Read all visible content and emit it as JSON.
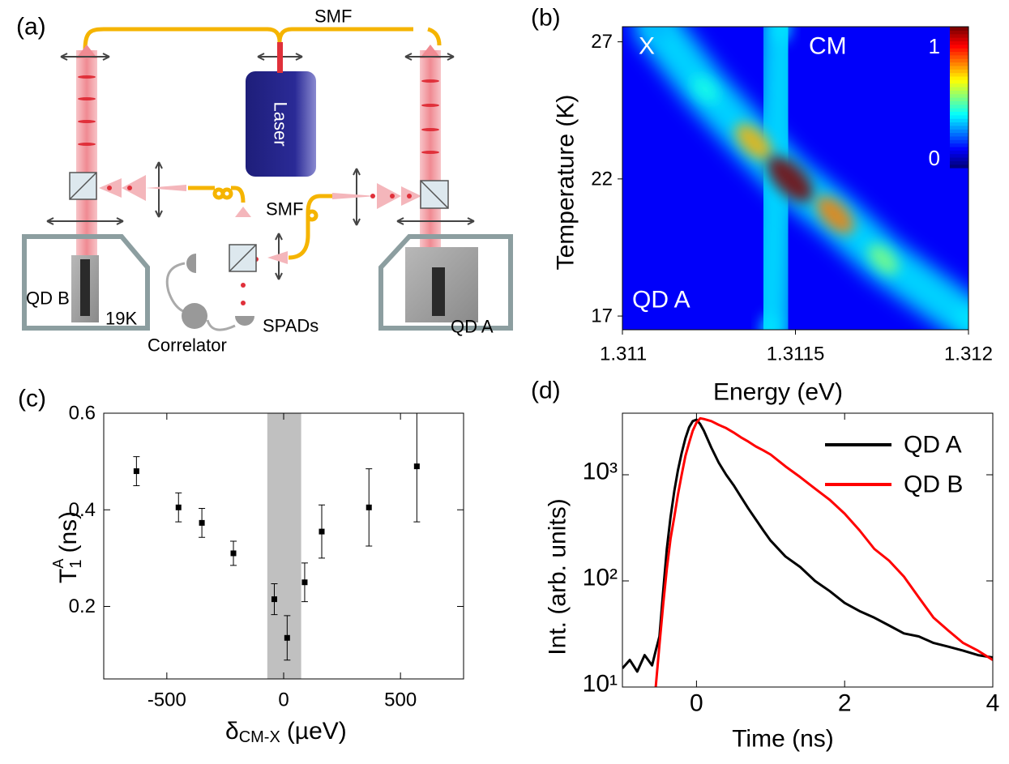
{
  "diagram": {
    "panel_label": "(a)",
    "fiber_top": "SMF",
    "laser": "Laser",
    "fiber_middle": "SMF",
    "sample_left": "QD B",
    "temperature": "19K",
    "correlator": "Correlator",
    "detectors": "SPADs",
    "sample_right": "QD A"
  },
  "chart_data": [
    {
      "type": "heatmap",
      "panel_label": "(b)",
      "xlabel": "Energy (eV)",
      "ylabel": "Temperature (K)",
      "xlim": [
        1.311,
        1.312
      ],
      "xticks": [
        1.311,
        1.3115,
        1.312
      ],
      "ylim": [
        16.5,
        27.55
      ],
      "yticks": [
        17,
        22,
        27
      ],
      "annotations": [
        "X",
        "CM",
        "QD A"
      ],
      "colorbar": {
        "ticks": [
          0,
          1
        ]
      },
      "ridges": [
        {
          "energy": [
            1.311461,
            1.311426
          ],
          "temperature": [
            27.55,
            16.5
          ],
          "intensity": [
            0.35,
            0.35
          ]
        },
        {
          "energy": [
            1.311098,
            1.311239,
            1.311379,
            1.311485,
            1.311614,
            1.311754,
            1.312
          ],
          "temperature": [
            27.55,
            25.27,
            23.35,
            21.99,
            20.69,
            19.07,
            16.85
          ],
          "intensity": [
            0.3,
            0.4,
            0.7,
            1,
            0.75,
            0.5,
            0.35
          ]
        }
      ]
    },
    {
      "type": "scatter",
      "panel_label": "(c)",
      "xlabel": {
        "symbol": "δ",
        "subscript": "CM-X",
        "unit": "(µeV)"
      },
      "ylabel": {
        "symbol": "T",
        "subscript": "1",
        "superscript": "A",
        "unit": "(ns)"
      },
      "xlim": [
        -770,
        770
      ],
      "xticks": [
        -500,
        0,
        500
      ],
      "ylim": [
        0.05,
        0.6
      ],
      "yticks": [
        0.2,
        0.4,
        0.6
      ],
      "shaded_region": [
        -70,
        75
      ],
      "x": [
        -630,
        -450,
        -350,
        -215,
        -40,
        15,
        90,
        163,
        365,
        570
      ],
      "values": [
        0.48,
        0.405,
        0.373,
        0.31,
        0.215,
        0.135,
        0.25,
        0.355,
        0.405,
        0.49
      ],
      "errors": [
        0.03,
        0.03,
        0.03,
        0.025,
        0.032,
        0.046,
        0.04,
        0.055,
        0.08,
        0.115
      ],
      "color": "#000000"
    },
    {
      "type": "line",
      "panel_label": "(d)",
      "xlabel": "Time (ns)",
      "ylabel": "Int. (arb. units)",
      "xlim": [
        -1,
        4
      ],
      "xticks": [
        0,
        2,
        4
      ],
      "ylim": [
        10,
        3800
      ],
      "log": true,
      "yticks": [
        {
          "value": 10,
          "label": "10¹"
        },
        {
          "value": 100,
          "label": "10²"
        },
        {
          "value": 1000,
          "label": "10³"
        }
      ],
      "legend": "upper right",
      "x": [
        -1,
        -0.9,
        -0.8,
        -0.7,
        -0.6,
        -0.55,
        -0.5,
        -0.45,
        -0.4,
        -0.35,
        -0.3,
        -0.25,
        -0.2,
        -0.15,
        -0.1,
        -0.05,
        0,
        0.05,
        0.1,
        0.2,
        0.3,
        0.4,
        0.5,
        0.6,
        0.7,
        0.8,
        0.9,
        1.0,
        1.2,
        1.4,
        1.6,
        1.8,
        2.0,
        2.2,
        2.4,
        2.6,
        2.8,
        3.0,
        3.2,
        3.4,
        3.6,
        3.8,
        4.0
      ],
      "series": [
        {
          "name": "QD A",
          "color": "#000000",
          "values": [
            15,
            18,
            14,
            20,
            16,
            22,
            30,
            80,
            200,
            400,
            700,
            1100,
            1600,
            2200,
            2800,
            3200,
            3300,
            3000,
            2600,
            1800,
            1300,
            1000,
            800,
            620,
            480,
            380,
            300,
            240,
            170,
            135,
            100,
            80,
            62,
            52,
            45,
            38,
            32,
            30,
            26,
            24,
            22,
            20,
            19
          ]
        },
        {
          "name": "QD B",
          "color": "#ff0000",
          "values": [
            null,
            null,
            null,
            null,
            null,
            10,
            25,
            60,
            130,
            250,
            400,
            650,
            1000,
            1500,
            2000,
            2600,
            3100,
            3400,
            3350,
            3200,
            2950,
            2750,
            2500,
            2250,
            2050,
            1850,
            1700,
            1550,
            1200,
            950,
            740,
            580,
            430,
            300,
            200,
            155,
            110,
            70,
            45,
            34,
            26,
            22,
            18
          ]
        }
      ]
    }
  ]
}
